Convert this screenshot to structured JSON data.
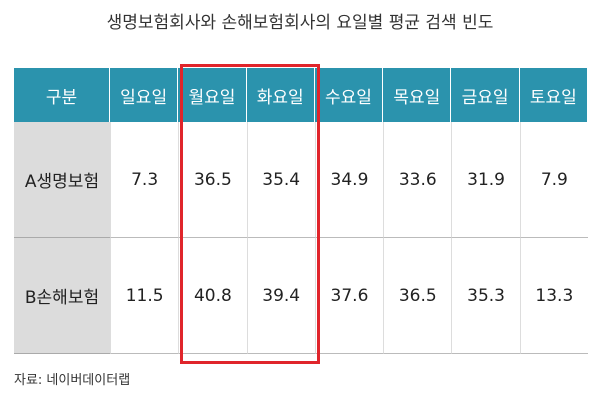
{
  "title": "생명보험회사와 손해보험회사의 요일별 평균 검색 빈도",
  "table": {
    "header": [
      "구분",
      "일요일",
      "월요일",
      "화요일",
      "수요일",
      "목요일",
      "금요일",
      "토요일"
    ],
    "rows": [
      [
        "A생명보험",
        "7.3",
        "36.5",
        "35.4",
        "34.9",
        "33.6",
        "31.9",
        "7.9"
      ],
      [
        "B손해보험",
        "11.5",
        "40.8",
        "39.4",
        "37.6",
        "36.5",
        "35.3",
        "13.3"
      ]
    ]
  },
  "source": "자료: 네이버데이터랩"
}
